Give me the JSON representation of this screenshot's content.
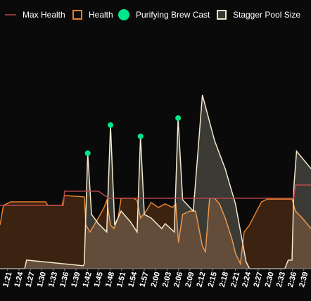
{
  "chart_data": {
    "type": "line",
    "xlim": [
      79,
      160.9
    ],
    "ylim": [
      0,
      100
    ],
    "xticks": [
      {
        "value": 81,
        "label": "1:21"
      },
      {
        "value": 84,
        "label": "1:24"
      },
      {
        "value": 87,
        "label": "1:27"
      },
      {
        "value": 90,
        "label": "1:30"
      },
      {
        "value": 93,
        "label": "1:33"
      },
      {
        "value": 96,
        "label": "1:36"
      },
      {
        "value": 99,
        "label": "1:39"
      },
      {
        "value": 102,
        "label": "1:42"
      },
      {
        "value": 105,
        "label": "1:45"
      },
      {
        "value": 108,
        "label": "1:48"
      },
      {
        "value": 111,
        "label": "1:51"
      },
      {
        "value": 114,
        "label": "1:54"
      },
      {
        "value": 117,
        "label": "1:57"
      },
      {
        "value": 120,
        "label": "2:00"
      },
      {
        "value": 123,
        "label": "2:03"
      },
      {
        "value": 126,
        "label": "2:06"
      },
      {
        "value": 129,
        "label": "2:09"
      },
      {
        "value": 132,
        "label": "2:12"
      },
      {
        "value": 135,
        "label": "2:15"
      },
      {
        "value": 138,
        "label": "2:18"
      },
      {
        "value": 141,
        "label": "2:21"
      },
      {
        "value": 144,
        "label": "2:24"
      },
      {
        "value": 147,
        "label": "2:27"
      },
      {
        "value": 150,
        "label": "2:30"
      },
      {
        "value": 153,
        "label": "2:33"
      },
      {
        "value": 156,
        "label": "2:36"
      },
      {
        "value": 159,
        "label": "2:39"
      }
    ],
    "series": [
      {
        "name": "Max Health",
        "type": "line",
        "color": "#b8474c",
        "x": [
          79,
          95.7,
          96.0,
          104.9,
          107.7,
          156.4,
          156.8,
          160.9
        ],
        "values": [
          28.1,
          28.1,
          34.4,
          34.4,
          31.3,
          31.3,
          37.2,
          37.2
        ]
      },
      {
        "name": "Health",
        "type": "area",
        "color": "#e8822a",
        "fill": "#3b2211",
        "x": [
          79,
          79.9,
          81.8,
          91.0,
          91.6,
          95.3,
          96.0,
          101.2,
          101.6,
          102.7,
          104.9,
          106.4,
          107.1,
          108.1,
          109.0,
          110.1,
          110.9,
          114.2,
          115.1,
          116.0,
          117.5,
          118.8,
          120.7,
          122.5,
          124.4,
          125.3,
          126.0,
          127.1,
          129.0,
          130.5,
          132.3,
          133.1,
          134.2,
          135.5,
          136.8,
          138.3,
          140.1,
          141.0,
          142.3,
          143.3,
          144.7,
          146.6,
          147.9,
          149.4,
          155.9,
          156.8,
          158.6,
          160.9
        ],
        "values": [
          19.4,
          28.1,
          29.7,
          29.7,
          28.1,
          28.1,
          32.5,
          31.9,
          19.4,
          16.3,
          22.5,
          27.2,
          30.3,
          19.4,
          17.8,
          22.5,
          31.3,
          31.3,
          30.3,
          22.5,
          25.6,
          29.4,
          27.2,
          28.8,
          27.2,
          28.8,
          11.6,
          24.1,
          25.6,
          25.6,
          10,
          7.5,
          31.3,
          31.3,
          28.8,
          22.5,
          13.1,
          6.9,
          2.2,
          16.3,
          19.4,
          25.6,
          29.7,
          30.9,
          30.9,
          25.6,
          22.5,
          17.8
        ]
      },
      {
        "name": "Purifying Brew Cast",
        "type": "scatter",
        "color": "#00e68c",
        "x": [
          102.1,
          108.1,
          116.0,
          125.9
        ],
        "values": [
          51.3,
          63.8,
          58.8,
          66.9
        ]
      },
      {
        "name": "Stagger Pool Size",
        "type": "area",
        "color": "#f2e8cc",
        "fill": "rgba(242,232,204,0.22)",
        "x": [
          79,
          85.5,
          86.0,
          100.9,
          101.2,
          102.1,
          103.1,
          104.9,
          107.1,
          108.1,
          109.2,
          110.9,
          113.3,
          115.1,
          116.0,
          117.0,
          118.8,
          121.6,
          122.5,
          124.9,
          125.9,
          127.1,
          129.9,
          132.3,
          135.5,
          138.3,
          141.0,
          143.8,
          144.7,
          154.0,
          154.9,
          155.9,
          156.4,
          157.1,
          160.9
        ],
        "values": [
          0,
          0,
          3.8,
          1.3,
          2.2,
          51.3,
          24.1,
          20,
          16.3,
          63.8,
          19.4,
          25.6,
          20.9,
          16.3,
          58.8,
          24.1,
          22.5,
          17.8,
          20,
          16.3,
          66.9,
          30.6,
          25.6,
          77.2,
          56.9,
          44.4,
          28.8,
          3.1,
          0,
          0,
          3.8,
          3.8,
          36.6,
          52.2,
          44.4
        ]
      }
    ]
  }
}
